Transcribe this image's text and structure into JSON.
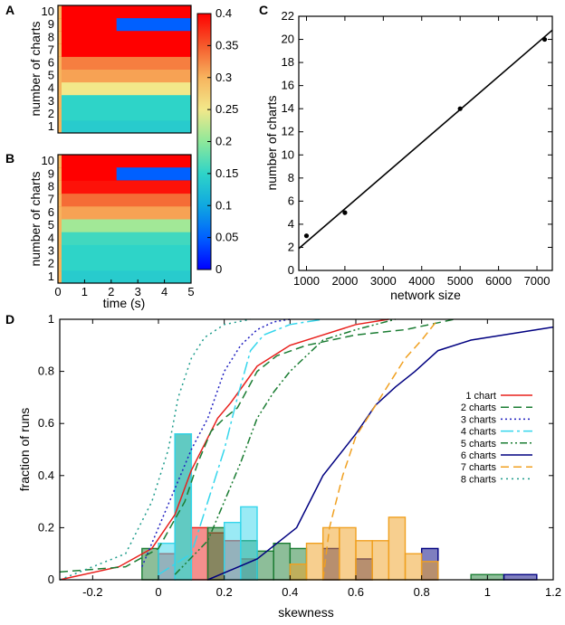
{
  "panels": {
    "a": "A",
    "b": "B",
    "c": "C",
    "d": "D"
  },
  "heatmaps": {
    "ylabel": "number of charts",
    "xlabel": "time (s)",
    "y_ticks": [
      "1",
      "2",
      "3",
      "4",
      "5",
      "6",
      "7",
      "8",
      "9",
      "10"
    ],
    "x_ticks": [
      "0",
      "1",
      "2",
      "3",
      "4",
      "5"
    ],
    "colorbar": {
      "ticks": [
        "0",
        "0.05",
        "0.1",
        "0.15",
        "0.2",
        "0.25",
        "0.3",
        "0.35",
        "0.4"
      ],
      "values": [
        0,
        0.05,
        0.1,
        0.15,
        0.2,
        0.25,
        0.3,
        0.35,
        0.4
      ],
      "min": 0,
      "max": 0.4
    }
  },
  "chart_data": [
    {
      "type": "heatmap",
      "panel": "A",
      "xlabel": "",
      "ylabel": "number of charts",
      "x_range": [
        0,
        5
      ],
      "rows": [
        1,
        2,
        3,
        4,
        5,
        6,
        7,
        8,
        9,
        10
      ],
      "row_values": [
        0.14,
        0.15,
        0.15,
        0.25,
        0.31,
        0.33,
        0.4,
        0.4,
        0.4,
        0.4
      ],
      "anomalies": [
        {
          "row": 9,
          "from": 2.2,
          "to": 5,
          "value": 0.05
        }
      ]
    },
    {
      "type": "heatmap",
      "panel": "B",
      "xlabel": "time (s)",
      "ylabel": "number of charts",
      "x_range": [
        0,
        5
      ],
      "rows": [
        1,
        2,
        3,
        4,
        5,
        6,
        7,
        8,
        9,
        10
      ],
      "row_values": [
        0.14,
        0.15,
        0.15,
        0.16,
        0.21,
        0.31,
        0.34,
        0.39,
        0.4,
        0.4
      ],
      "anomalies": [
        {
          "row": 9,
          "from": 2.2,
          "to": 5,
          "value": 0.05
        }
      ]
    },
    {
      "type": "scatter",
      "panel": "C",
      "xlabel": "network size",
      "ylabel": "number of charts",
      "xlim": [
        800,
        7400
      ],
      "ylim": [
        0,
        22
      ],
      "x_ticks": [
        1000,
        2000,
        3000,
        4000,
        5000,
        6000,
        7000
      ],
      "y_ticks": [
        0,
        2,
        4,
        6,
        8,
        10,
        12,
        14,
        16,
        18,
        20,
        22
      ],
      "points": [
        {
          "x": 1000,
          "y": 3
        },
        {
          "x": 2000,
          "y": 5
        },
        {
          "x": 5000,
          "y": 14
        },
        {
          "x": 7200,
          "y": 20
        }
      ],
      "fit_line": {
        "x": [
          800,
          7400
        ],
        "y": [
          1.9,
          20.8
        ]
      }
    },
    {
      "type": "line",
      "panel": "D",
      "xlabel": "skewness",
      "ylabel": "fraction of runs",
      "xlim": [
        -0.3,
        1.2
      ],
      "ylim": [
        0,
        1
      ],
      "x_ticks": [
        -0.2,
        0,
        0.2,
        0.4,
        0.6,
        0.8,
        1,
        1.2
      ],
      "x_tick_labels": [
        "-0.2",
        "0",
        "0.2",
        "0.4",
        "0.6",
        "0.8",
        "1",
        "1.2"
      ],
      "y_ticks": [
        0,
        0.2,
        0.4,
        0.6,
        0.8,
        1
      ],
      "y_tick_labels": [
        "0",
        "0.2",
        "0.4",
        "0.6",
        "0.8",
        "1"
      ],
      "series": [
        {
          "name": "1 chart",
          "color": "#e8201c",
          "dash": "",
          "x": [
            -0.3,
            -0.12,
            -0.02,
            0.05,
            0.1,
            0.14,
            0.18,
            0.22,
            0.26,
            0.3,
            0.35,
            0.4,
            0.5,
            0.6,
            0.7
          ],
          "y": [
            0,
            0.05,
            0.12,
            0.25,
            0.42,
            0.52,
            0.62,
            0.68,
            0.75,
            0.82,
            0.86,
            0.9,
            0.94,
            0.98,
            1.0
          ]
        },
        {
          "name": "2 charts",
          "color": "#1b7d33",
          "dash": "9,5",
          "x": [
            -0.3,
            -0.1,
            0,
            0.08,
            0.12,
            0.16,
            0.2,
            0.24,
            0.3,
            0.36,
            0.45,
            0.6,
            0.75,
            0.9
          ],
          "y": [
            0.03,
            0.05,
            0.12,
            0.3,
            0.45,
            0.57,
            0.62,
            0.66,
            0.8,
            0.86,
            0.9,
            0.94,
            0.96,
            1.0
          ]
        },
        {
          "name": "3 charts",
          "color": "#2020c0",
          "dash": "2,3",
          "x": [
            -0.05,
            0,
            0.05,
            0.1,
            0.15,
            0.2,
            0.25,
            0.3,
            0.35,
            0.4
          ],
          "y": [
            0.05,
            0.2,
            0.35,
            0.5,
            0.62,
            0.8,
            0.9,
            0.96,
            0.99,
            1.0
          ]
        },
        {
          "name": "4 charts",
          "color": "#35d6ec",
          "dash": "14,4,3,4",
          "x": [
            0,
            0.1,
            0.15,
            0.2,
            0.24,
            0.28,
            0.32,
            0.4,
            0.5
          ],
          "y": [
            0.02,
            0.1,
            0.3,
            0.5,
            0.7,
            0.88,
            0.94,
            0.98,
            1.0
          ]
        },
        {
          "name": "5 charts",
          "color": "#1b7d33",
          "dash": "8,3,2,3,2,3",
          "x": [
            0.05,
            0.15,
            0.2,
            0.25,
            0.3,
            0.35,
            0.4,
            0.45,
            0.5,
            0.6,
            0.72
          ],
          "y": [
            0.02,
            0.15,
            0.3,
            0.45,
            0.62,
            0.72,
            0.8,
            0.86,
            0.92,
            0.96,
            1.0
          ]
        },
        {
          "name": "6 charts",
          "color": "#000080",
          "dash": "",
          "x": [
            0.15,
            0.3,
            0.42,
            0.5,
            0.6,
            0.66,
            0.72,
            0.78,
            0.85,
            0.95,
            1.1,
            1.2
          ],
          "y": [
            0,
            0.08,
            0.2,
            0.4,
            0.56,
            0.67,
            0.74,
            0.8,
            0.88,
            0.92,
            0.95,
            0.97
          ]
        },
        {
          "name": "7 charts",
          "color": "#f0a020",
          "dash": "9,5",
          "x": [
            0.5,
            0.52,
            0.56,
            0.6,
            0.65,
            0.7,
            0.75,
            0.8,
            0.85
          ],
          "y": [
            0,
            0.2,
            0.4,
            0.55,
            0.65,
            0.75,
            0.85,
            0.92,
            1.0
          ]
        },
        {
          "name": "8 charts",
          "color": "#1e9c8c",
          "dash": "2,4",
          "x": [
            -0.3,
            -0.1,
            -0.02,
            0.03,
            0.06,
            0.1,
            0.14,
            0.2,
            0.28
          ],
          "y": [
            0,
            0.1,
            0.3,
            0.5,
            0.7,
            0.85,
            0.93,
            0.98,
            1.0
          ]
        }
      ],
      "histograms": [
        {
          "name": "1 chart",
          "color": "#e8201c",
          "bins": [
            {
              "x0": 0.1,
              "x1": 0.15,
              "h": 0.2
            },
            {
              "x0": 0.15,
              "x1": 0.2,
              "h": 0.18
            },
            {
              "x0": 0.2,
              "x1": 0.25,
              "h": 0.15
            },
            {
              "x0": 0.25,
              "x1": 0.3,
              "h": 0.08
            },
            {
              "x0": 0.0,
              "x1": 0.05,
              "h": 0.1
            }
          ]
        },
        {
          "name": "2 charts",
          "color": "#1b7d33",
          "bins": [
            {
              "x0": -0.05,
              "x1": 0.0,
              "h": 0.12
            },
            {
              "x0": 0.05,
              "x1": 0.1,
              "h": 0.56
            },
            {
              "x0": 0.15,
              "x1": 0.2,
              "h": 0.2
            },
            {
              "x0": 0.25,
              "x1": 0.3,
              "h": 0.15
            },
            {
              "x0": 0.3,
              "x1": 0.35,
              "h": 0.11
            },
            {
              "x0": 0.35,
              "x1": 0.4,
              "h": 0.14
            },
            {
              "x0": 0.4,
              "x1": 0.45,
              "h": 0.12
            },
            {
              "x0": 0.95,
              "x1": 1.05,
              "h": 0.02
            }
          ]
        },
        {
          "name": "4 charts",
          "color": "#35d6ec",
          "bins": [
            {
              "x0": 0.05,
              "x1": 0.1,
              "h": 0.56
            },
            {
              "x0": 0.25,
              "x1": 0.3,
              "h": 0.28
            },
            {
              "x0": 0.2,
              "x1": 0.25,
              "h": 0.22
            },
            {
              "x0": 0.0,
              "x1": 0.05,
              "h": 0.14
            }
          ]
        },
        {
          "name": "6 charts",
          "color": "#000080",
          "bins": [
            {
              "x0": 0.5,
              "x1": 0.55,
              "h": 0.12
            },
            {
              "x0": 0.6,
              "x1": 0.65,
              "h": 0.08
            },
            {
              "x0": 0.8,
              "x1": 0.85,
              "h": 0.12
            },
            {
              "x0": 1.05,
              "x1": 1.15,
              "h": 0.02
            }
          ]
        },
        {
          "name": "7 charts",
          "color": "#f0a020",
          "bins": [
            {
              "x0": 0.4,
              "x1": 0.45,
              "h": 0.06
            },
            {
              "x0": 0.45,
              "x1": 0.5,
              "h": 0.14
            },
            {
              "x0": 0.5,
              "x1": 0.55,
              "h": 0.2
            },
            {
              "x0": 0.55,
              "x1": 0.6,
              "h": 0.2
            },
            {
              "x0": 0.6,
              "x1": 0.65,
              "h": 0.15
            },
            {
              "x0": 0.65,
              "x1": 0.7,
              "h": 0.15
            },
            {
              "x0": 0.7,
              "x1": 0.75,
              "h": 0.24
            },
            {
              "x0": 0.75,
              "x1": 0.8,
              "h": 0.1
            },
            {
              "x0": 0.8,
              "x1": 0.85,
              "h": 0.07
            }
          ]
        }
      ]
    }
  ]
}
